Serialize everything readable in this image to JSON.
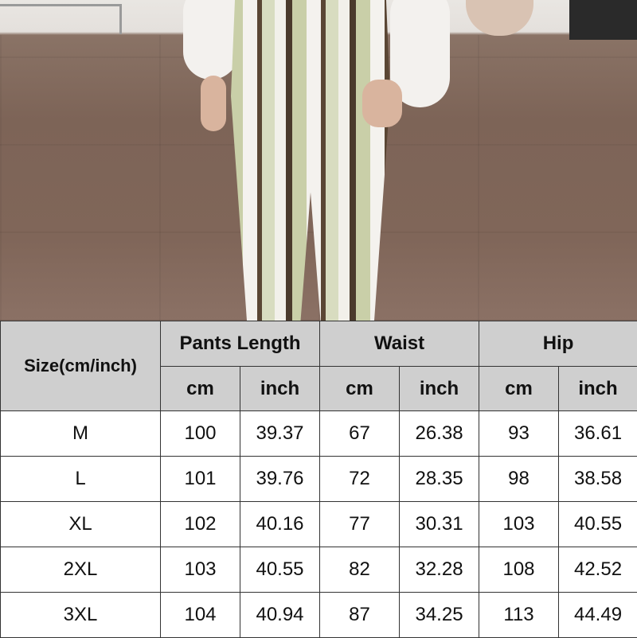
{
  "size_chart": {
    "size_header": "Size(cm/inch)",
    "groups": [
      "Pants Length",
      "Waist",
      "Hip"
    ],
    "units": [
      "cm",
      "inch",
      "cm",
      "inch",
      "cm",
      "inch"
    ],
    "rows": [
      {
        "size": "M",
        "values": [
          "100",
          "39.37",
          "67",
          "26.38",
          "93",
          "36.61"
        ]
      },
      {
        "size": "L",
        "values": [
          "101",
          "39.76",
          "72",
          "28.35",
          "98",
          "38.58"
        ]
      },
      {
        "size": "XL",
        "values": [
          "102",
          "40.16",
          "77",
          "30.31",
          "103",
          "40.55"
        ]
      },
      {
        "size": "2XL",
        "values": [
          "103",
          "40.55",
          "82",
          "32.28",
          "108",
          "42.52"
        ]
      },
      {
        "size": "3XL",
        "values": [
          "104",
          "40.94",
          "87",
          "34.25",
          "113",
          "44.49"
        ]
      }
    ]
  },
  "colors": {
    "header_bg": "#cfcfcf",
    "border": "#333333"
  }
}
